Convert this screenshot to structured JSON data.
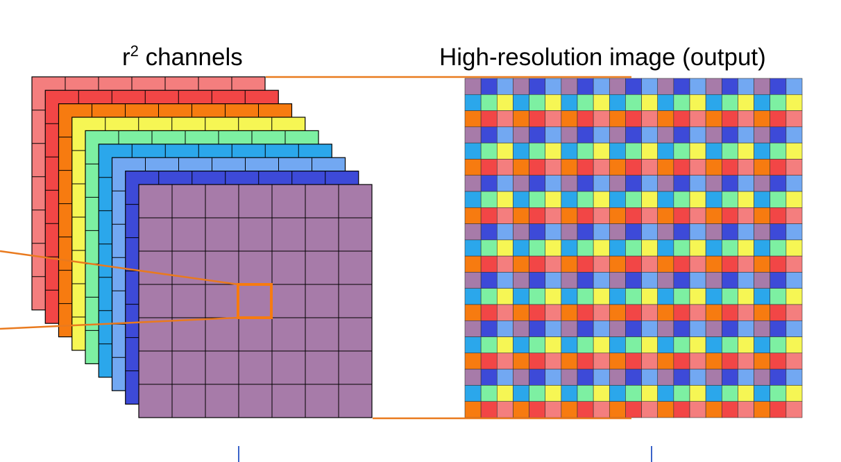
{
  "labels": {
    "channels_base": "r",
    "channels_exp": "2",
    "channels_rest": " channels",
    "output": "High-resolution  image (output)"
  },
  "grid": {
    "channel_grid_size": 7,
    "output_grid_size": 21,
    "channel_border": "#000000",
    "output_border": "#333333"
  },
  "channels": [
    {
      "name": "salmon",
      "color": "#F47E7E"
    },
    {
      "name": "red",
      "color": "#F24646"
    },
    {
      "name": "orange",
      "color": "#F77B10"
    },
    {
      "name": "yellow",
      "color": "#F6F654"
    },
    {
      "name": "mint",
      "color": "#7DF0A2"
    },
    {
      "name": "sky",
      "color": "#2BA7EB"
    },
    {
      "name": "light-blue",
      "color": "#72A8F2"
    },
    {
      "name": "blue",
      "color": "#3D4AD8"
    },
    {
      "name": "purple",
      "color": "#A77BA9"
    }
  ],
  "output_pattern": {
    "row_types": [
      [
        "purple",
        "blue",
        "light-blue"
      ],
      [
        "sky",
        "mint",
        "yellow"
      ],
      [
        "orange",
        "red",
        "salmon"
      ]
    ]
  },
  "accent": {
    "connector_color": "#E97A1E",
    "highlight_color": "#F77B10",
    "tick_color": "#3A63C9"
  }
}
